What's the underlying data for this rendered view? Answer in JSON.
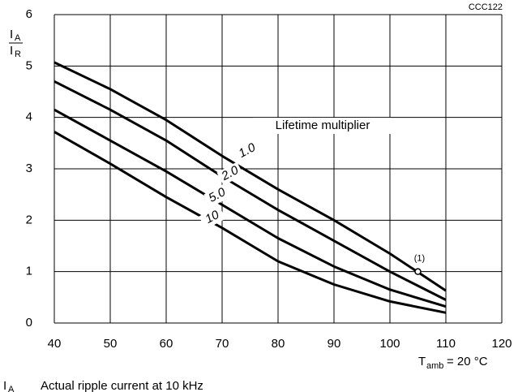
{
  "chart_data": {
    "type": "line",
    "code": "CCC122",
    "ylabel": {
      "numerator": "I",
      "numerator_sub": "A",
      "denominator": "I",
      "denominator_sub": "R"
    },
    "series_label": "Lifetime multiplier",
    "x": [
      40,
      50,
      60,
      70,
      80,
      90,
      100,
      110
    ],
    "series": [
      {
        "name": "1.0",
        "color": "#000000",
        "values": [
          5.07,
          4.55,
          3.95,
          3.25,
          2.6,
          2.0,
          1.35,
          0.63
        ]
      },
      {
        "name": "2.0",
        "color": "#000000",
        "values": [
          4.7,
          4.15,
          3.55,
          2.85,
          2.2,
          1.6,
          1.0,
          0.45
        ]
      },
      {
        "name": "5.0",
        "color": "#000000",
        "values": [
          4.15,
          3.55,
          2.95,
          2.3,
          1.65,
          1.1,
          0.65,
          0.32
        ]
      },
      {
        "name": "10",
        "color": "#000000",
        "values": [
          3.72,
          3.1,
          2.45,
          1.85,
          1.2,
          0.75,
          0.42,
          0.2
        ]
      }
    ],
    "annotation": {
      "x": 105,
      "y": 1,
      "label": "(1)"
    },
    "condition": {
      "symbol": "T",
      "sub": "amb",
      "text": "= 20 °C"
    },
    "footnote": {
      "symbol": "I",
      "sub": "A",
      "text": "Actual ripple current at 10 kHz"
    },
    "xlim": [
      40,
      120
    ],
    "xticks": [
      40,
      50,
      60,
      70,
      80,
      90,
      100,
      110,
      120
    ],
    "ylim": [
      0,
      6
    ],
    "yticks": [
      0,
      1,
      2,
      3,
      4,
      5,
      6
    ],
    "grid": true
  }
}
